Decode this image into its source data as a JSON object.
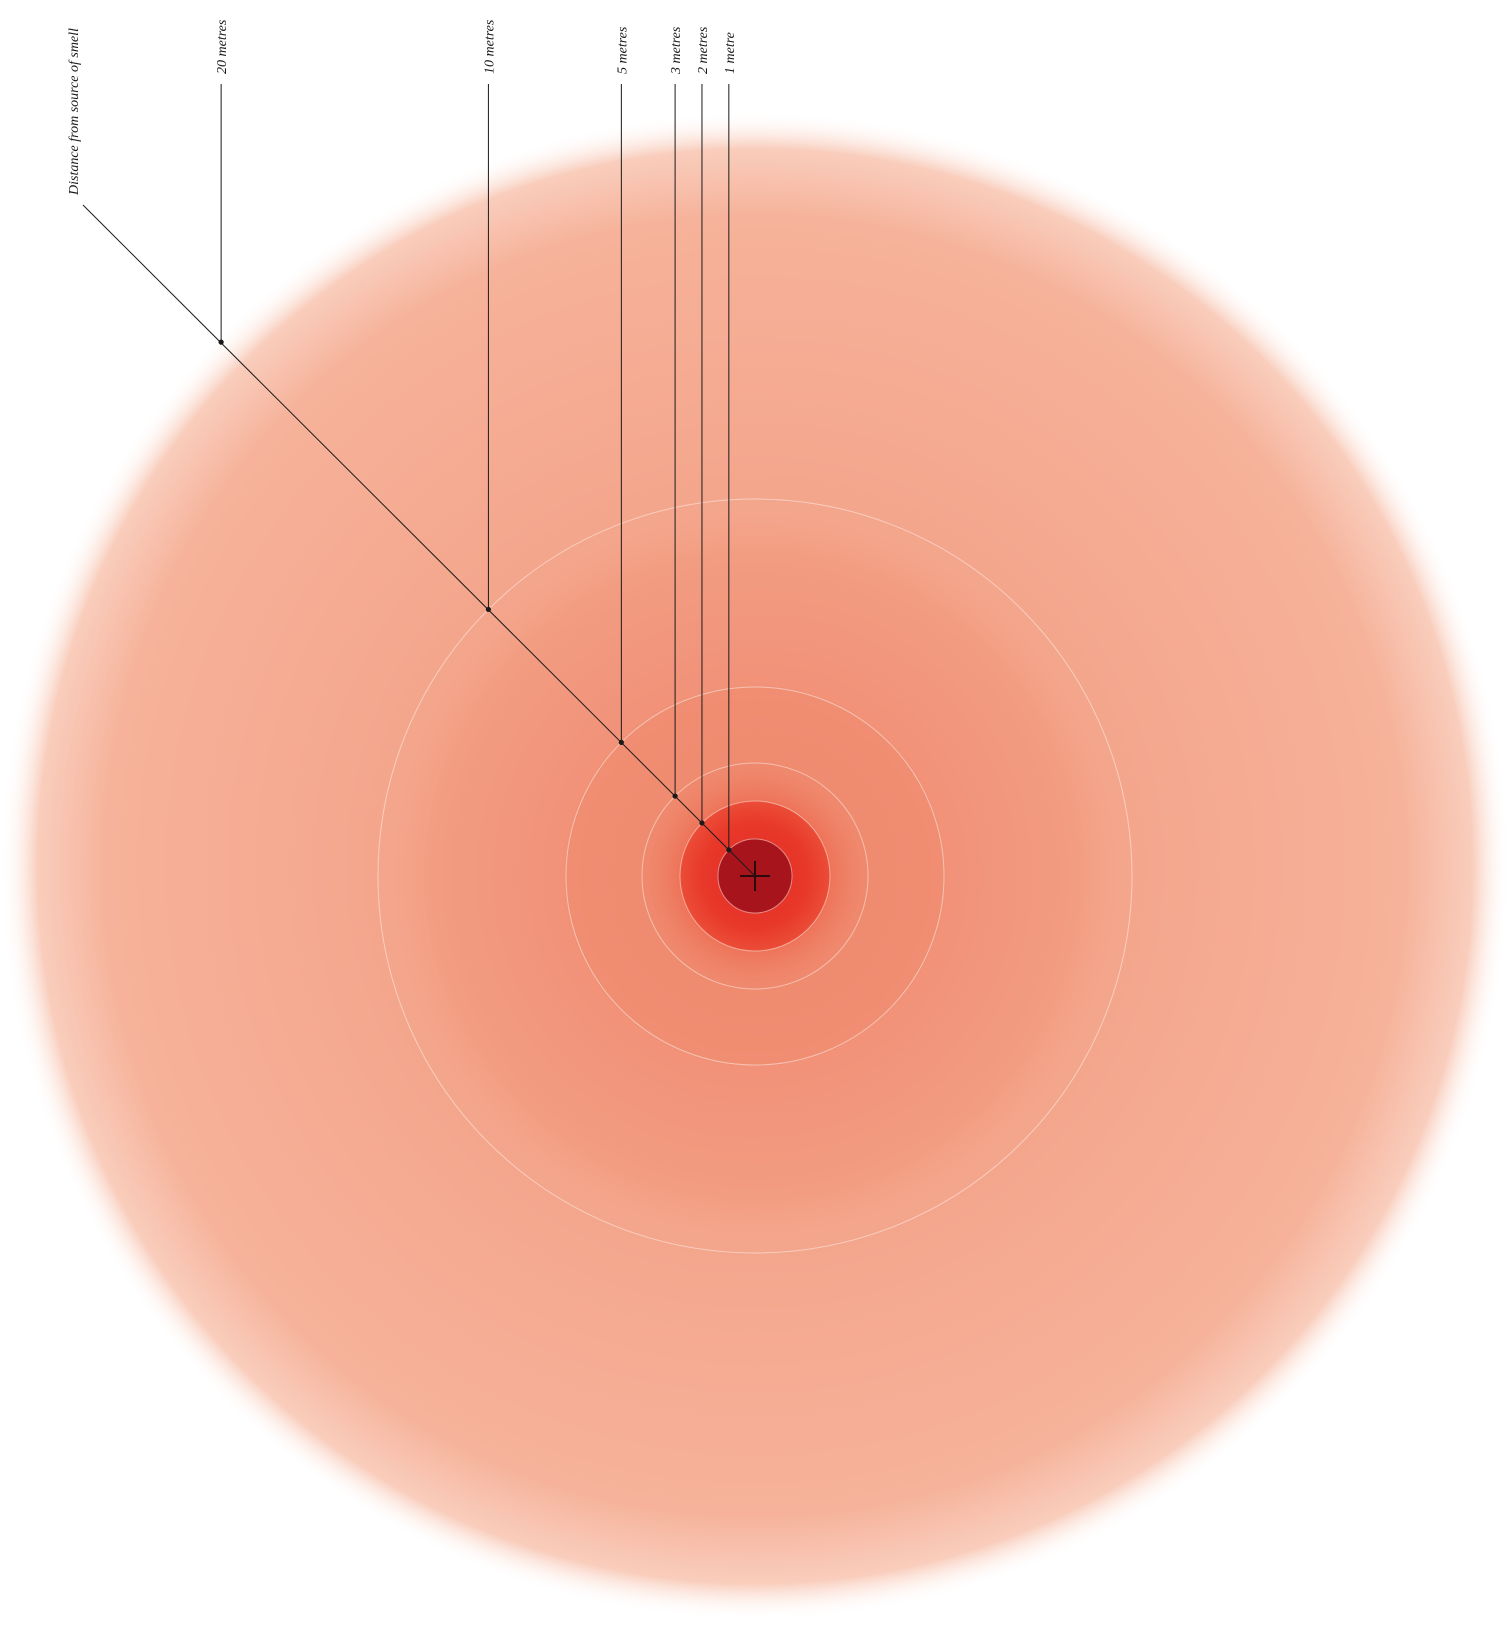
{
  "diagram": {
    "title": "Distance from source of smell",
    "unit_plural": "metres",
    "unit_singular": "metre",
    "source_marker": "crosshair",
    "colors": {
      "outer_haze": "#f6b29a",
      "mid_zone": "#f29a7e",
      "inner_zone": "#ee7a5e",
      "core_zone": "#e8382a",
      "source_center": "#a8141c",
      "leader_line": "#1a1a1a"
    },
    "rings": [
      {
        "distance_m": 1,
        "label": "1 metre"
      },
      {
        "distance_m": 2,
        "label": "2 metres"
      },
      {
        "distance_m": 3,
        "label": "3 metres"
      },
      {
        "distance_m": 5,
        "label": "5 metres"
      },
      {
        "distance_m": 10,
        "label": "10 metres"
      },
      {
        "distance_m": 20,
        "label": "20 metres"
      }
    ]
  }
}
